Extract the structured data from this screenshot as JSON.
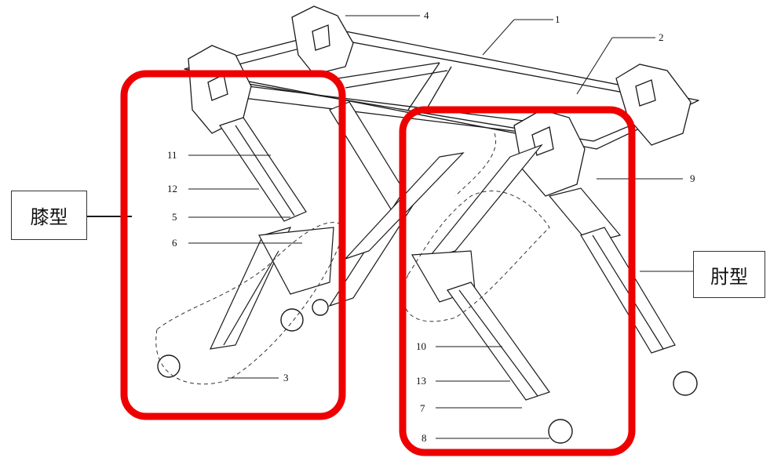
{
  "labels": {
    "knee": "膝型",
    "elbow": "肘型"
  },
  "callouts": [
    "1",
    "2",
    "3",
    "4",
    "5",
    "6",
    "7",
    "8",
    "9",
    "10",
    "11",
    "12",
    "13"
  ],
  "colors": {
    "highlight": "#ee0000",
    "line": "#1a1a1a",
    "background": "#ffffff"
  }
}
